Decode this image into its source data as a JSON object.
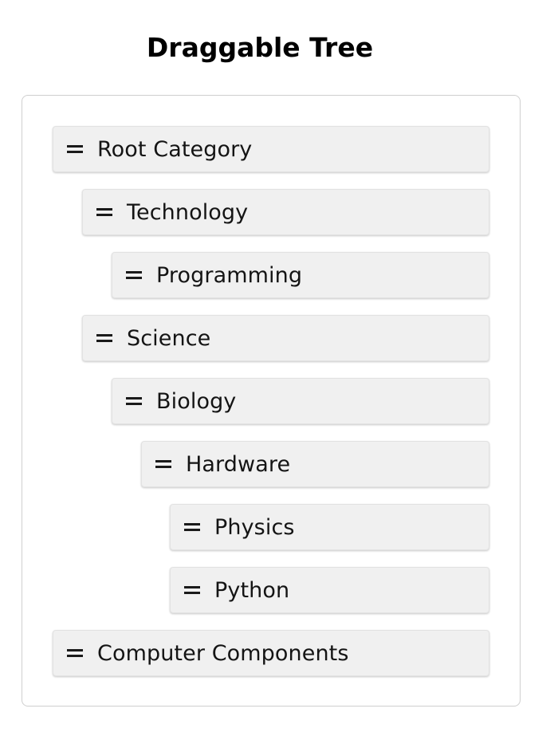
{
  "page": {
    "title": "Draggable Tree"
  },
  "tree": {
    "items": [
      {
        "label": "Root Category",
        "depth": 0,
        "handle_icon": "drag-handle-icon"
      },
      {
        "label": "Technology",
        "depth": 1,
        "handle_icon": "drag-handle-icon"
      },
      {
        "label": "Programming",
        "depth": 2,
        "handle_icon": "drag-handle-icon"
      },
      {
        "label": "Science",
        "depth": 1,
        "handle_icon": "drag-handle-icon"
      },
      {
        "label": "Biology",
        "depth": 2,
        "handle_icon": "drag-handle-icon"
      },
      {
        "label": "Hardware",
        "depth": 3,
        "handle_icon": "drag-handle-icon"
      },
      {
        "label": "Physics",
        "depth": 4,
        "handle_icon": "drag-handle-icon"
      },
      {
        "label": "Python",
        "depth": 4,
        "handle_icon": "drag-handle-icon"
      },
      {
        "label": "Computer Components",
        "depth": 0,
        "handle_icon": "drag-handle-icon"
      }
    ]
  },
  "colors": {
    "item_background": "#f0f0f0",
    "container_border": "#cfcfcf",
    "text": "#141414"
  }
}
